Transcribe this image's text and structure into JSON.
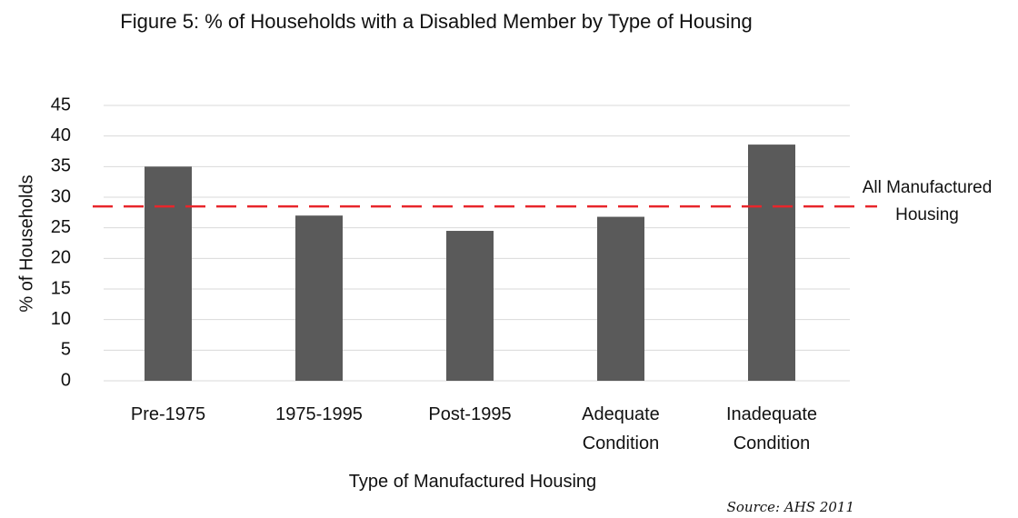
{
  "chart_data": {
    "type": "bar",
    "title": "Figure 5: % of Households with a Disabled Member by Type of Housing",
    "x_label": "Type of Manufactured Housing",
    "y_label": "% of Households",
    "source": "Source: AHS 2011",
    "categories": [
      "Pre-1975",
      "1975-1995",
      "Post-1995",
      "Adequate Condition",
      "Inadequate Condition"
    ],
    "values": [
      35,
      27,
      24.5,
      26.8,
      38.6
    ],
    "color": "#5a5a5a",
    "ylim": [
      0,
      45
    ],
    "yticks": [
      0,
      5,
      10,
      15,
      20,
      25,
      30,
      35,
      40,
      45
    ],
    "grid": true,
    "reference_line": {
      "value": 28.5,
      "label": "All Manufactured Housing",
      "color": "#e8262b"
    }
  }
}
